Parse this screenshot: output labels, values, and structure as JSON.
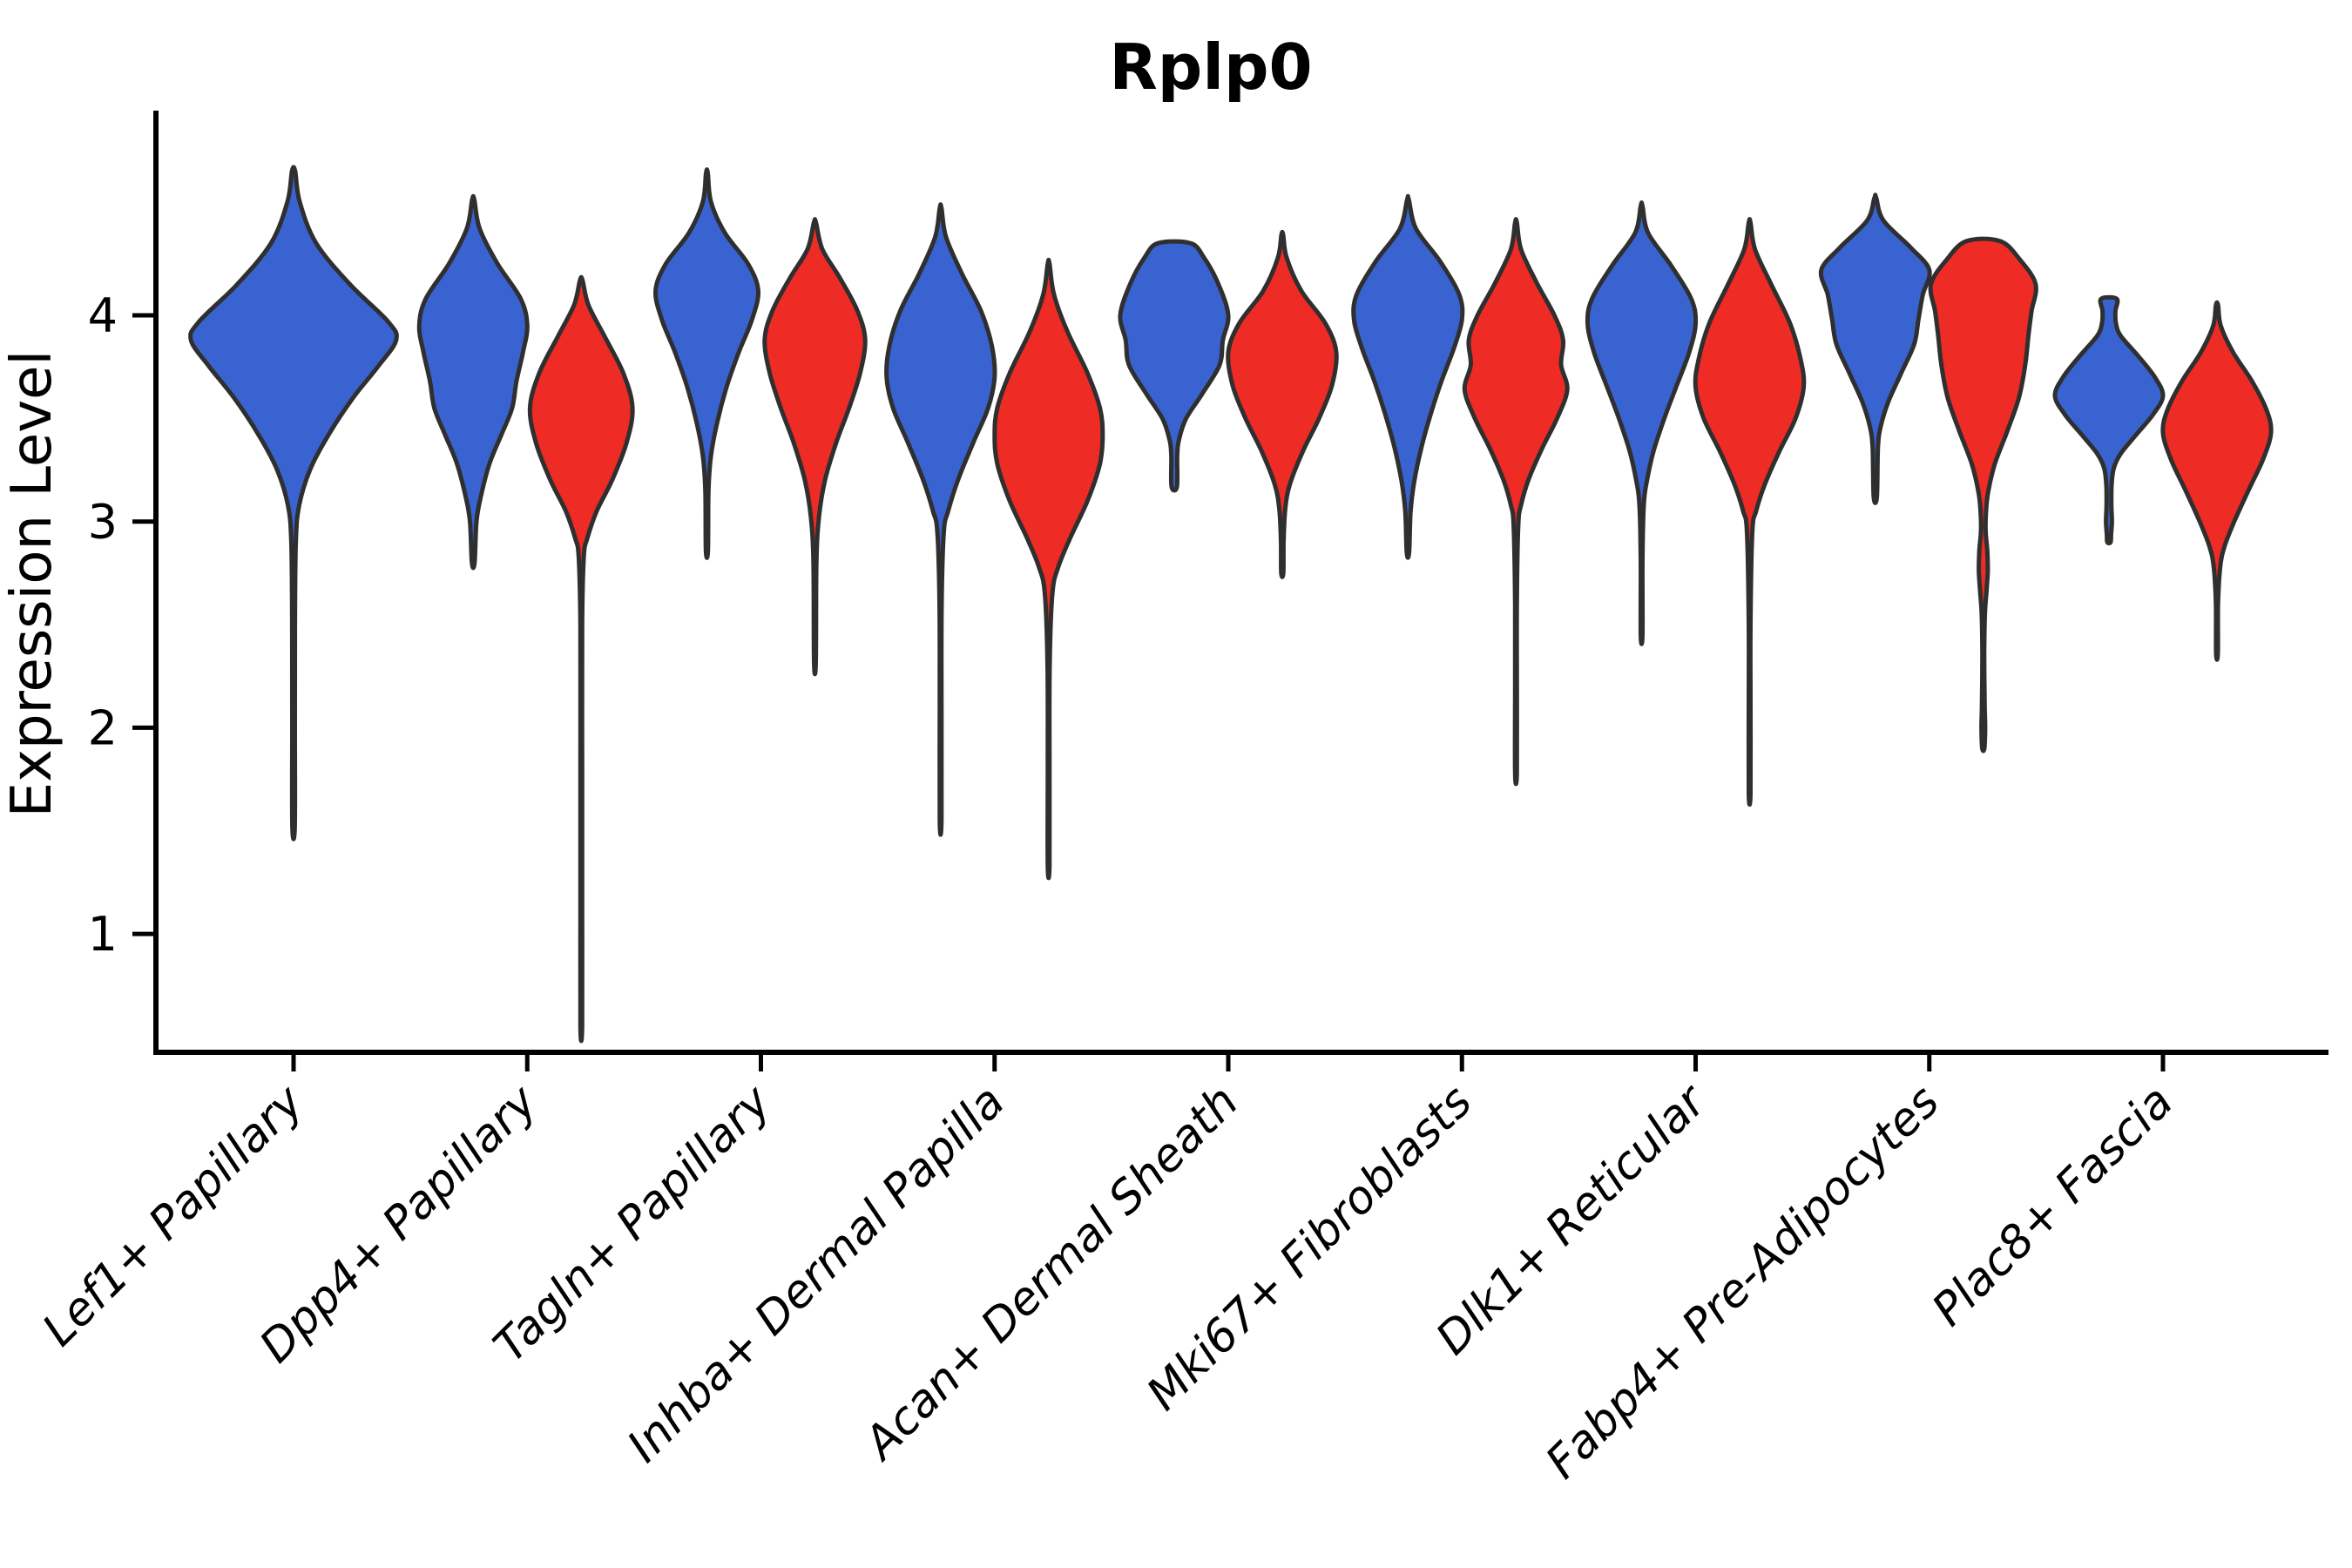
{
  "chart_data": {
    "type": "violin",
    "title": "Rplp0",
    "ylabel": "Expression Level",
    "xlabel": "",
    "yticks": [
      4,
      3,
      2,
      1
    ],
    "ylim": [
      0.4,
      4.98
    ],
    "grid": false,
    "legend": "none",
    "split_colors": {
      "blue": "#3a63d2",
      "red": "#ee2b24"
    },
    "outline_color": "#2f2f2f",
    "categories": [
      "Lef1+ Papillary",
      "Dpp4+ Papillary",
      "Tagln+ Papillary",
      "Inhba+ Dermal Papilla",
      "Acan+ Dermal Sheath",
      "Mki67+ Fibroblasts",
      "Dlk1+ Reticular",
      "Fabp4+ Pre-Adipocytes",
      "Plac8+ Fascia"
    ],
    "violins": [
      {
        "category": "Lef1+ Papillary",
        "split": "blue",
        "min": 1.52,
        "mode": 3.9,
        "max": 4.7,
        "dodge": 0,
        "relwidth": 1.9,
        "profile": [
          [
            4.7,
            0.015
          ],
          [
            4.55,
            0.06
          ],
          [
            4.35,
            0.22
          ],
          [
            4.15,
            0.55
          ],
          [
            3.97,
            0.92
          ],
          [
            3.88,
            1.0
          ],
          [
            3.75,
            0.82
          ],
          [
            3.6,
            0.58
          ],
          [
            3.42,
            0.34
          ],
          [
            3.25,
            0.16
          ],
          [
            3.08,
            0.055
          ],
          [
            2.9,
            0.022
          ],
          [
            2.5,
            0.014
          ],
          [
            2.0,
            0.013
          ],
          [
            1.52,
            0.012
          ]
        ]
      },
      {
        "category": "Dpp4+ Papillary",
        "split": "blue",
        "min": 2.8,
        "mode": 3.95,
        "max": 4.56,
        "dodge": -1,
        "relwidth": 1,
        "profile": [
          [
            4.56,
            0.02
          ],
          [
            4.42,
            0.12
          ],
          [
            4.25,
            0.45
          ],
          [
            4.08,
            0.88
          ],
          [
            3.95,
            1.0
          ],
          [
            3.82,
            0.92
          ],
          [
            3.68,
            0.8
          ],
          [
            3.55,
            0.72
          ],
          [
            3.42,
            0.52
          ],
          [
            3.28,
            0.3
          ],
          [
            3.12,
            0.14
          ],
          [
            3.0,
            0.06
          ],
          [
            2.8,
            0.025
          ]
        ]
      },
      {
        "category": "Dpp4+ Papillary",
        "split": "red",
        "min": 0.55,
        "mode": 3.55,
        "max": 4.17,
        "dodge": 1,
        "relwidth": 0.95,
        "profile": [
          [
            4.17,
            0.025
          ],
          [
            4.05,
            0.14
          ],
          [
            3.9,
            0.45
          ],
          [
            3.72,
            0.82
          ],
          [
            3.55,
            1.0
          ],
          [
            3.38,
            0.88
          ],
          [
            3.2,
            0.6
          ],
          [
            3.05,
            0.3
          ],
          [
            2.92,
            0.12
          ],
          [
            2.83,
            0.05
          ],
          [
            2.5,
            0.014
          ],
          [
            1.8,
            0.013
          ],
          [
            1.1,
            0.012
          ],
          [
            0.55,
            0.012
          ]
        ]
      },
      {
        "category": "Tagln+ Papillary",
        "split": "blue",
        "min": 2.86,
        "mode": 4.12,
        "max": 4.69,
        "dodge": -1,
        "relwidth": 0.95,
        "profile": [
          [
            4.69,
            0.015
          ],
          [
            4.55,
            0.08
          ],
          [
            4.4,
            0.35
          ],
          [
            4.25,
            0.8
          ],
          [
            4.12,
            1.0
          ],
          [
            3.98,
            0.88
          ],
          [
            3.82,
            0.62
          ],
          [
            3.65,
            0.38
          ],
          [
            3.48,
            0.2
          ],
          [
            3.32,
            0.08
          ],
          [
            3.15,
            0.03
          ],
          [
            2.86,
            0.02
          ]
        ]
      },
      {
        "category": "Tagln+ Papillary",
        "split": "red",
        "min": 2.32,
        "mode": 3.88,
        "max": 4.45,
        "dodge": 1,
        "relwidth": 0.93,
        "profile": [
          [
            4.45,
            0.02
          ],
          [
            4.32,
            0.15
          ],
          [
            4.18,
            0.5
          ],
          [
            4.02,
            0.85
          ],
          [
            3.88,
            1.0
          ],
          [
            3.72,
            0.9
          ],
          [
            3.55,
            0.68
          ],
          [
            3.38,
            0.42
          ],
          [
            3.2,
            0.2
          ],
          [
            3.02,
            0.08
          ],
          [
            2.8,
            0.03
          ],
          [
            2.32,
            0.018
          ]
        ]
      },
      {
        "category": "Inhba+ Dermal Papilla",
        "split": "blue",
        "min": 1.55,
        "mode": 3.7,
        "max": 4.52,
        "dodge": -1,
        "relwidth": 1,
        "profile": [
          [
            4.52,
            0.015
          ],
          [
            4.38,
            0.1
          ],
          [
            4.2,
            0.4
          ],
          [
            4.02,
            0.75
          ],
          [
            3.85,
            0.95
          ],
          [
            3.7,
            1.0
          ],
          [
            3.55,
            0.88
          ],
          [
            3.38,
            0.6
          ],
          [
            3.2,
            0.32
          ],
          [
            3.05,
            0.14
          ],
          [
            2.95,
            0.06
          ],
          [
            2.6,
            0.02
          ],
          [
            2.1,
            0.014
          ],
          [
            1.55,
            0.012
          ]
        ]
      },
      {
        "category": "Inhba+ Dermal Papilla",
        "split": "red",
        "min": 1.33,
        "mode": 3.42,
        "max": 4.25,
        "dodge": 1,
        "relwidth": 1,
        "profile": [
          [
            4.25,
            0.015
          ],
          [
            4.1,
            0.1
          ],
          [
            3.92,
            0.35
          ],
          [
            3.72,
            0.72
          ],
          [
            3.55,
            0.95
          ],
          [
            3.42,
            1.0
          ],
          [
            3.28,
            0.95
          ],
          [
            3.1,
            0.72
          ],
          [
            2.92,
            0.4
          ],
          [
            2.78,
            0.18
          ],
          [
            2.65,
            0.07
          ],
          [
            2.3,
            0.02
          ],
          [
            1.8,
            0.014
          ],
          [
            1.33,
            0.012
          ]
        ]
      },
      {
        "category": "Acan+ Dermal Sheath",
        "split": "blue",
        "min": 3.17,
        "mode": 4.0,
        "max": 4.35,
        "dodge": -1,
        "relwidth": 1,
        "flat_top": true,
        "profile": [
          [
            4.35,
            0.3
          ],
          [
            4.28,
            0.55
          ],
          [
            4.15,
            0.82
          ],
          [
            4.0,
            1.0
          ],
          [
            3.88,
            0.9
          ],
          [
            3.76,
            0.84
          ],
          [
            3.62,
            0.52
          ],
          [
            3.5,
            0.22
          ],
          [
            3.4,
            0.09
          ],
          [
            3.32,
            0.055
          ],
          [
            3.17,
            0.05
          ]
        ]
      },
      {
        "category": "Acan+ Dermal Sheath",
        "split": "red",
        "min": 2.75,
        "mode": 3.82,
        "max": 4.39,
        "dodge": 1,
        "relwidth": 1,
        "profile": [
          [
            4.39,
            0.015
          ],
          [
            4.28,
            0.08
          ],
          [
            4.12,
            0.35
          ],
          [
            3.96,
            0.8
          ],
          [
            3.82,
            1.0
          ],
          [
            3.66,
            0.92
          ],
          [
            3.5,
            0.68
          ],
          [
            3.34,
            0.38
          ],
          [
            3.18,
            0.14
          ],
          [
            3.06,
            0.055
          ],
          [
            2.9,
            0.025
          ],
          [
            2.75,
            0.02
          ]
        ]
      },
      {
        "category": "Mki67+ Fibroblasts",
        "split": "blue",
        "min": 2.85,
        "mode": 3.98,
        "max": 4.56,
        "dodge": -1,
        "relwidth": 1,
        "profile": [
          [
            4.56,
            0.015
          ],
          [
            4.42,
            0.15
          ],
          [
            4.26,
            0.6
          ],
          [
            4.1,
            0.95
          ],
          [
            3.98,
            1.0
          ],
          [
            3.84,
            0.85
          ],
          [
            3.68,
            0.62
          ],
          [
            3.52,
            0.42
          ],
          [
            3.36,
            0.25
          ],
          [
            3.2,
            0.12
          ],
          [
            3.05,
            0.05
          ],
          [
            2.85,
            0.022
          ]
        ]
      },
      {
        "category": "Mki67+ Fibroblasts",
        "split": "red",
        "min": 1.78,
        "mode": 3.64,
        "max": 4.45,
        "dodge": 1,
        "relwidth": 0.95,
        "profile": [
          [
            4.45,
            0.015
          ],
          [
            4.32,
            0.1
          ],
          [
            4.16,
            0.4
          ],
          [
            4.0,
            0.75
          ],
          [
            3.88,
            0.92
          ],
          [
            3.76,
            0.88
          ],
          [
            3.64,
            1.0
          ],
          [
            3.5,
            0.8
          ],
          [
            3.35,
            0.5
          ],
          [
            3.2,
            0.24
          ],
          [
            3.08,
            0.1
          ],
          [
            2.98,
            0.045
          ],
          [
            2.6,
            0.016
          ],
          [
            2.2,
            0.014
          ],
          [
            1.78,
            0.012
          ]
        ]
      },
      {
        "category": "Dlk1+ Reticular",
        "split": "blue",
        "min": 2.45,
        "mode": 3.96,
        "max": 4.53,
        "dodge": -1,
        "relwidth": 1,
        "profile": [
          [
            4.53,
            0.015
          ],
          [
            4.4,
            0.12
          ],
          [
            4.24,
            0.55
          ],
          [
            4.08,
            0.92
          ],
          [
            3.96,
            1.0
          ],
          [
            3.82,
            0.88
          ],
          [
            3.66,
            0.65
          ],
          [
            3.5,
            0.42
          ],
          [
            3.34,
            0.22
          ],
          [
            3.2,
            0.1
          ],
          [
            3.08,
            0.04
          ],
          [
            2.8,
            0.016
          ],
          [
            2.45,
            0.013
          ]
        ]
      },
      {
        "category": "Dlk1+ Reticular",
        "split": "red",
        "min": 1.68,
        "mode": 3.65,
        "max": 4.45,
        "dodge": 1,
        "relwidth": 1,
        "profile": [
          [
            4.45,
            0.015
          ],
          [
            4.32,
            0.1
          ],
          [
            4.15,
            0.4
          ],
          [
            3.96,
            0.75
          ],
          [
            3.78,
            0.95
          ],
          [
            3.65,
            1.0
          ],
          [
            3.5,
            0.85
          ],
          [
            3.34,
            0.55
          ],
          [
            3.18,
            0.28
          ],
          [
            3.05,
            0.12
          ],
          [
            2.95,
            0.05
          ],
          [
            2.5,
            0.016
          ],
          [
            2.1,
            0.014
          ],
          [
            1.68,
            0.012
          ]
        ]
      },
      {
        "category": "Fabp4+ Pre-Adipocytes",
        "split": "blue",
        "min": 3.12,
        "mode": 4.22,
        "max": 4.57,
        "dodge": -1,
        "relwidth": 1,
        "profile": [
          [
            4.57,
            0.015
          ],
          [
            4.46,
            0.15
          ],
          [
            4.33,
            0.65
          ],
          [
            4.22,
            1.0
          ],
          [
            4.1,
            0.88
          ],
          [
            3.98,
            0.8
          ],
          [
            3.86,
            0.72
          ],
          [
            3.72,
            0.48
          ],
          [
            3.58,
            0.24
          ],
          [
            3.46,
            0.1
          ],
          [
            3.36,
            0.05
          ],
          [
            3.12,
            0.03
          ]
        ]
      },
      {
        "category": "Fabp4+ Pre-Adipocytes",
        "split": "red",
        "min": 1.9,
        "mode": 4.15,
        "max": 4.36,
        "dodge": 1,
        "relwidth": 0.97,
        "flat_top": true,
        "bimodal": true,
        "profile": [
          [
            4.36,
            0.32
          ],
          [
            4.27,
            0.7
          ],
          [
            4.15,
            1.0
          ],
          [
            4.02,
            0.92
          ],
          [
            3.9,
            0.86
          ],
          [
            3.76,
            0.8
          ],
          [
            3.6,
            0.68
          ],
          [
            3.44,
            0.46
          ],
          [
            3.28,
            0.22
          ],
          [
            3.14,
            0.09
          ],
          [
            3.04,
            0.05
          ],
          [
            2.95,
            0.045
          ],
          [
            2.86,
            0.075
          ],
          [
            2.76,
            0.085
          ],
          [
            2.66,
            0.06
          ],
          [
            2.55,
            0.03
          ],
          [
            2.35,
            0.018
          ],
          [
            2.12,
            0.025
          ],
          [
            2.0,
            0.035
          ],
          [
            1.9,
            0.02
          ]
        ]
      },
      {
        "category": "Plac8+ Fascia",
        "split": "blue",
        "min": 2.9,
        "mode": 3.61,
        "max": 4.08,
        "dodge": -1,
        "relwidth": 1,
        "flat_top": true,
        "profile": [
          [
            4.08,
            0.145
          ],
          [
            4.02,
            0.12
          ],
          [
            3.96,
            0.13
          ],
          [
            3.9,
            0.22
          ],
          [
            3.8,
            0.55
          ],
          [
            3.7,
            0.85
          ],
          [
            3.61,
            1.0
          ],
          [
            3.52,
            0.82
          ],
          [
            3.42,
            0.5
          ],
          [
            3.33,
            0.22
          ],
          [
            3.26,
            0.09
          ],
          [
            3.18,
            0.05
          ],
          [
            3.08,
            0.045
          ],
          [
            3.0,
            0.055
          ],
          [
            2.94,
            0.04
          ],
          [
            2.9,
            0.03
          ]
        ]
      },
      {
        "category": "Plac8+ Fascia",
        "split": "red",
        "min": 2.36,
        "mode": 3.43,
        "max": 4.05,
        "dodge": 1,
        "relwidth": 1,
        "profile": [
          [
            4.05,
            0.02
          ],
          [
            3.95,
            0.07
          ],
          [
            3.82,
            0.3
          ],
          [
            3.68,
            0.65
          ],
          [
            3.54,
            0.92
          ],
          [
            3.43,
            1.0
          ],
          [
            3.3,
            0.85
          ],
          [
            3.15,
            0.58
          ],
          [
            3.0,
            0.32
          ],
          [
            2.88,
            0.14
          ],
          [
            2.78,
            0.06
          ],
          [
            2.6,
            0.02
          ],
          [
            2.36,
            0.015
          ]
        ]
      }
    ]
  }
}
